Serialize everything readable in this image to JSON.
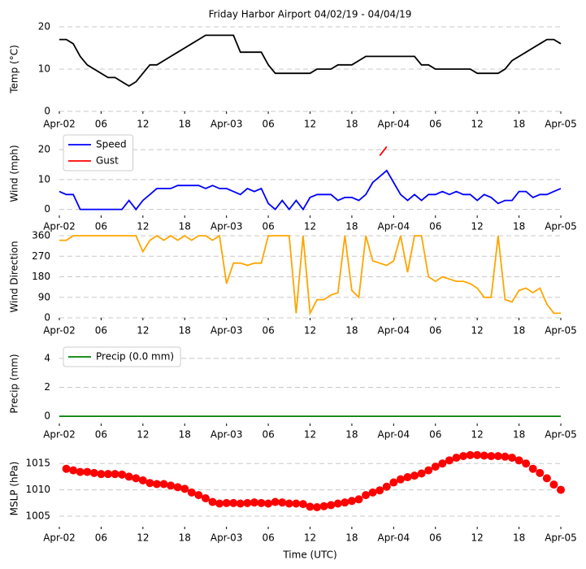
{
  "chart_data": [
    {
      "type": "line",
      "title": "Friday Harbor Airport 04/02/19 - 04/04/19",
      "ylabel": "Temp (°C)",
      "color": "#000000",
      "x": [
        0,
        1,
        2,
        3,
        4,
        5,
        6,
        7,
        8,
        9,
        10,
        11,
        12,
        13,
        14,
        15,
        16,
        17,
        18,
        19,
        20,
        21,
        22,
        23,
        24,
        25,
        26,
        27,
        28,
        29,
        30,
        31,
        32,
        33,
        34,
        35,
        36,
        37,
        38,
        39,
        40,
        41,
        42,
        43,
        44,
        45,
        46,
        47,
        48,
        49,
        50,
        51,
        52,
        53,
        54,
        55,
        56,
        57,
        58,
        59,
        60,
        61,
        62,
        63,
        64,
        65,
        66,
        67,
        68,
        69,
        70,
        71,
        72
      ],
      "values": [
        17,
        17,
        16,
        13,
        11,
        10,
        9,
        8,
        8,
        7,
        6,
        7,
        9,
        11,
        11,
        12,
        13,
        14,
        15,
        16,
        17,
        18,
        18,
        18,
        18,
        18,
        14,
        14,
        14,
        14,
        11,
        9,
        9,
        9,
        9,
        9,
        9,
        10,
        10,
        10,
        11,
        11,
        11,
        12,
        13,
        13,
        13,
        13,
        13,
        13,
        13,
        13,
        11,
        11,
        10,
        10,
        10,
        10,
        10,
        10,
        9,
        9,
        9,
        9,
        10,
        12,
        13,
        14,
        15,
        16,
        17,
        17,
        16
      ],
      "xlim": [
        0,
        72
      ],
      "xticks": [
        {
          "value": 0,
          "label": "Apr-02"
        },
        {
          "value": 6,
          "label": "06"
        },
        {
          "value": 12,
          "label": "12"
        },
        {
          "value": 18,
          "label": "18"
        },
        {
          "value": 24,
          "label": "Apr-03"
        },
        {
          "value": 30,
          "label": "06"
        },
        {
          "value": 36,
          "label": "12"
        },
        {
          "value": 42,
          "label": "18"
        },
        {
          "value": 48,
          "label": "Apr-04"
        },
        {
          "value": 54,
          "label": "06"
        },
        {
          "value": 60,
          "label": "12"
        },
        {
          "value": 66,
          "label": "18"
        },
        {
          "value": 72,
          "label": "Apr-05"
        }
      ],
      "ylim": [
        0,
        20
      ],
      "yticks": [
        0,
        10,
        20
      ],
      "grid": true
    },
    {
      "type": "line",
      "ylabel": "Wind (mph)",
      "legend": "upper left",
      "x": [
        0,
        1,
        2,
        3,
        4,
        5,
        6,
        7,
        8,
        9,
        10,
        11,
        12,
        13,
        14,
        15,
        16,
        17,
        18,
        19,
        20,
        21,
        22,
        23,
        24,
        25,
        26,
        27,
        28,
        29,
        30,
        31,
        32,
        33,
        34,
        35,
        36,
        37,
        38,
        39,
        40,
        41,
        42,
        43,
        44,
        45,
        46,
        47,
        48,
        49,
        50,
        51,
        52,
        53,
        54,
        55,
        56,
        57,
        58,
        59,
        60,
        61,
        62,
        63,
        64,
        65,
        66,
        67,
        68,
        69,
        70,
        71,
        72
      ],
      "series": [
        {
          "name": "Speed",
          "color": "#0000ff",
          "values": [
            6,
            5,
            5,
            0,
            0,
            0,
            0,
            0,
            0,
            0,
            3,
            0,
            3,
            5,
            7,
            7,
            7,
            8,
            8,
            8,
            8,
            7,
            8,
            7,
            7,
            6,
            5,
            7,
            6,
            7,
            2,
            0,
            3,
            0,
            3,
            0,
            4,
            5,
            5,
            5,
            3,
            4,
            4,
            3,
            5,
            9,
            11,
            13,
            9,
            5,
            3,
            5,
            3,
            5,
            5,
            6,
            5,
            6,
            5,
            5,
            3,
            5,
            4,
            2,
            3,
            3,
            6,
            6,
            4,
            5,
            5,
            6,
            7
          ]
        },
        {
          "name": "Gust",
          "color": "#ff0000",
          "values": [
            null,
            null,
            null,
            null,
            null,
            null,
            null,
            null,
            null,
            null,
            null,
            null,
            null,
            null,
            null,
            null,
            null,
            null,
            null,
            null,
            null,
            null,
            null,
            null,
            null,
            null,
            null,
            null,
            null,
            null,
            null,
            null,
            null,
            null,
            null,
            null,
            null,
            null,
            null,
            null,
            null,
            null,
            null,
            null,
            null,
            null,
            18,
            21,
            null,
            null,
            null,
            null,
            null,
            null,
            null,
            null,
            null,
            null,
            null,
            null,
            null,
            null,
            null,
            null,
            null,
            null,
            null,
            null,
            null,
            null,
            null,
            null,
            null
          ]
        }
      ],
      "xlim": [
        0,
        72
      ],
      "xticks": [
        {
          "value": 0,
          "label": "Apr-02"
        },
        {
          "value": 6,
          "label": "06"
        },
        {
          "value": 12,
          "label": "12"
        },
        {
          "value": 18,
          "label": "18"
        },
        {
          "value": 24,
          "label": "Apr-03"
        },
        {
          "value": 30,
          "label": "06"
        },
        {
          "value": 36,
          "label": "12"
        },
        {
          "value": 42,
          "label": "18"
        },
        {
          "value": 48,
          "label": "Apr-04"
        },
        {
          "value": 54,
          "label": "06"
        },
        {
          "value": 60,
          "label": "12"
        },
        {
          "value": 66,
          "label": "18"
        },
        {
          "value": 72,
          "label": "Apr-05"
        }
      ],
      "ylim": [
        -2,
        26
      ],
      "yticks": [
        0,
        10,
        20
      ],
      "grid": true
    },
    {
      "type": "line",
      "ylabel": "Wind Direction",
      "color": "#ffa500",
      "x": [
        0,
        1,
        2,
        3,
        4,
        5,
        6,
        7,
        8,
        9,
        10,
        11,
        12,
        13,
        14,
        15,
        16,
        17,
        18,
        19,
        20,
        21,
        22,
        23,
        24,
        25,
        26,
        27,
        28,
        29,
        30,
        31,
        32,
        33,
        34,
        35,
        36,
        37,
        38,
        39,
        40,
        41,
        42,
        43,
        44,
        45,
        46,
        47,
        48,
        49,
        50,
        51,
        52,
        53,
        54,
        55,
        56,
        57,
        58,
        59,
        60,
        61,
        62,
        63,
        64,
        65,
        66,
        67,
        68,
        69,
        70,
        71,
        72
      ],
      "values": [
        340,
        340,
        360,
        360,
        360,
        360,
        360,
        360,
        360,
        360,
        360,
        360,
        290,
        340,
        360,
        340,
        360,
        340,
        360,
        340,
        360,
        360,
        340,
        360,
        150,
        240,
        240,
        230,
        240,
        240,
        360,
        360,
        360,
        360,
        20,
        360,
        20,
        80,
        80,
        100,
        110,
        360,
        120,
        90,
        360,
        250,
        240,
        230,
        250,
        360,
        200,
        360,
        360,
        180,
        160,
        180,
        170,
        160,
        160,
        150,
        130,
        90,
        90,
        360,
        80,
        70,
        120,
        130,
        110,
        130,
        60,
        20,
        20
      ],
      "xlim": [
        0,
        72
      ],
      "xticks": [
        {
          "value": 0,
          "label": "Apr-02"
        },
        {
          "value": 6,
          "label": "06"
        },
        {
          "value": 12,
          "label": "12"
        },
        {
          "value": 18,
          "label": "18"
        },
        {
          "value": 24,
          "label": "Apr-03"
        },
        {
          "value": 30,
          "label": "06"
        },
        {
          "value": 36,
          "label": "12"
        },
        {
          "value": 42,
          "label": "18"
        },
        {
          "value": 48,
          "label": "Apr-04"
        },
        {
          "value": 54,
          "label": "06"
        },
        {
          "value": 60,
          "label": "12"
        },
        {
          "value": 66,
          "label": "18"
        },
        {
          "value": 72,
          "label": "Apr-05"
        }
      ],
      "ylim": [
        0,
        360
      ],
      "yticks": [
        0,
        90,
        180,
        270,
        360
      ],
      "grid": true
    },
    {
      "type": "line",
      "ylabel": "Precip (mm)",
      "legend": "upper left",
      "x": [
        0,
        1,
        2,
        3,
        4,
        5,
        6,
        7,
        8,
        9,
        10,
        11,
        12,
        13,
        14,
        15,
        16,
        17,
        18,
        19,
        20,
        21,
        22,
        23,
        24,
        25,
        26,
        27,
        28,
        29,
        30,
        31,
        32,
        33,
        34,
        35,
        36,
        37,
        38,
        39,
        40,
        41,
        42,
        43,
        44,
        45,
        46,
        47,
        48,
        49,
        50,
        51,
        52,
        53,
        54,
        55,
        56,
        57,
        58,
        59,
        60,
        61,
        62,
        63,
        64,
        65,
        66,
        67,
        68,
        69,
        70,
        71,
        72
      ],
      "series": [
        {
          "name": "Precip (0.0 mm)",
          "color": "#008000",
          "values": [
            0,
            0,
            0,
            0,
            0,
            0,
            0,
            0,
            0,
            0,
            0,
            0,
            0,
            0,
            0,
            0,
            0,
            0,
            0,
            0,
            0,
            0,
            0,
            0,
            0,
            0,
            0,
            0,
            0,
            0,
            0,
            0,
            0,
            0,
            0,
            0,
            0,
            0,
            0,
            0,
            0,
            0,
            0,
            0,
            0,
            0,
            0,
            0,
            0,
            0,
            0,
            0,
            0,
            0,
            0,
            0,
            0,
            0,
            0,
            0,
            0,
            0,
            0,
            0,
            0,
            0,
            0,
            0,
            0,
            0,
            0,
            0,
            0
          ]
        }
      ],
      "xlim": [
        0,
        72
      ],
      "xticks": [
        {
          "value": 0,
          "label": "Apr-02"
        },
        {
          "value": 6,
          "label": "06"
        },
        {
          "value": 12,
          "label": "12"
        },
        {
          "value": 18,
          "label": "18"
        },
        {
          "value": 24,
          "label": "Apr-03"
        },
        {
          "value": 30,
          "label": "06"
        },
        {
          "value": 36,
          "label": "12"
        },
        {
          "value": 42,
          "label": "18"
        },
        {
          "value": 48,
          "label": "Apr-04"
        },
        {
          "value": 54,
          "label": "06"
        },
        {
          "value": 60,
          "label": "12"
        },
        {
          "value": 66,
          "label": "18"
        },
        {
          "value": 72,
          "label": "Apr-05"
        }
      ],
      "ylim": [
        -0.5,
        5
      ],
      "yticks": [
        0,
        2,
        4
      ],
      "grid": true
    },
    {
      "type": "scatter",
      "ylabel": "MSLP (hPa)",
      "xlabel": "Time (UTC)",
      "color": "#ff0000",
      "x": [
        1,
        2,
        3,
        4,
        5,
        6,
        7,
        8,
        9,
        10,
        11,
        12,
        13,
        14,
        15,
        16,
        17,
        18,
        19,
        20,
        21,
        22,
        23,
        24,
        25,
        26,
        27,
        28,
        29,
        30,
        31,
        32,
        33,
        34,
        35,
        36,
        37,
        38,
        39,
        40,
        41,
        42,
        43,
        44,
        45,
        46,
        47,
        48,
        49,
        50,
        51,
        52,
        53,
        54,
        55,
        56,
        57,
        58,
        59,
        60,
        61,
        62,
        63,
        64,
        65,
        66,
        67,
        68,
        69,
        70,
        71,
        72
      ],
      "values": [
        1014,
        1013.7,
        1013.4,
        1013.4,
        1013.2,
        1013,
        1013,
        1013,
        1012.9,
        1012.5,
        1012.2,
        1011.8,
        1011.3,
        1011.1,
        1011.1,
        1010.8,
        1010.5,
        1010.2,
        1009.5,
        1009,
        1008.4,
        1007.7,
        1007.4,
        1007.5,
        1007.5,
        1007.4,
        1007.5,
        1007.6,
        1007.5,
        1007.4,
        1007.7,
        1007.6,
        1007.4,
        1007.4,
        1007.3,
        1006.8,
        1006.7,
        1006.9,
        1007.1,
        1007.4,
        1007.6,
        1007.9,
        1008.2,
        1009,
        1009.5,
        1009.9,
        1010.6,
        1011.4,
        1012,
        1012.4,
        1012.7,
        1013.1,
        1013.7,
        1014.4,
        1015,
        1015.6,
        1016.1,
        1016.4,
        1016.6,
        1016.6,
        1016.5,
        1016.4,
        1016.4,
        1016.3,
        1016.1,
        1015.6,
        1015,
        1014,
        1013.2,
        1012.2,
        1011,
        1010
      ],
      "xlim": [
        0,
        72
      ],
      "xticks": [
        {
          "value": 0,
          "label": "Apr-02"
        },
        {
          "value": 6,
          "label": "06"
        },
        {
          "value": 12,
          "label": "12"
        },
        {
          "value": 18,
          "label": "18"
        },
        {
          "value": 24,
          "label": "Apr-03"
        },
        {
          "value": 30,
          "label": "06"
        },
        {
          "value": 36,
          "label": "12"
        },
        {
          "value": 42,
          "label": "18"
        },
        {
          "value": 48,
          "label": "Apr-04"
        },
        {
          "value": 54,
          "label": "06"
        },
        {
          "value": 60,
          "label": "12"
        },
        {
          "value": 66,
          "label": "18"
        },
        {
          "value": 72,
          "label": "Apr-05"
        }
      ],
      "ylim": [
        1003,
        1017.5
      ],
      "yticks": [
        1005,
        1010,
        1015
      ],
      "grid": true
    }
  ]
}
